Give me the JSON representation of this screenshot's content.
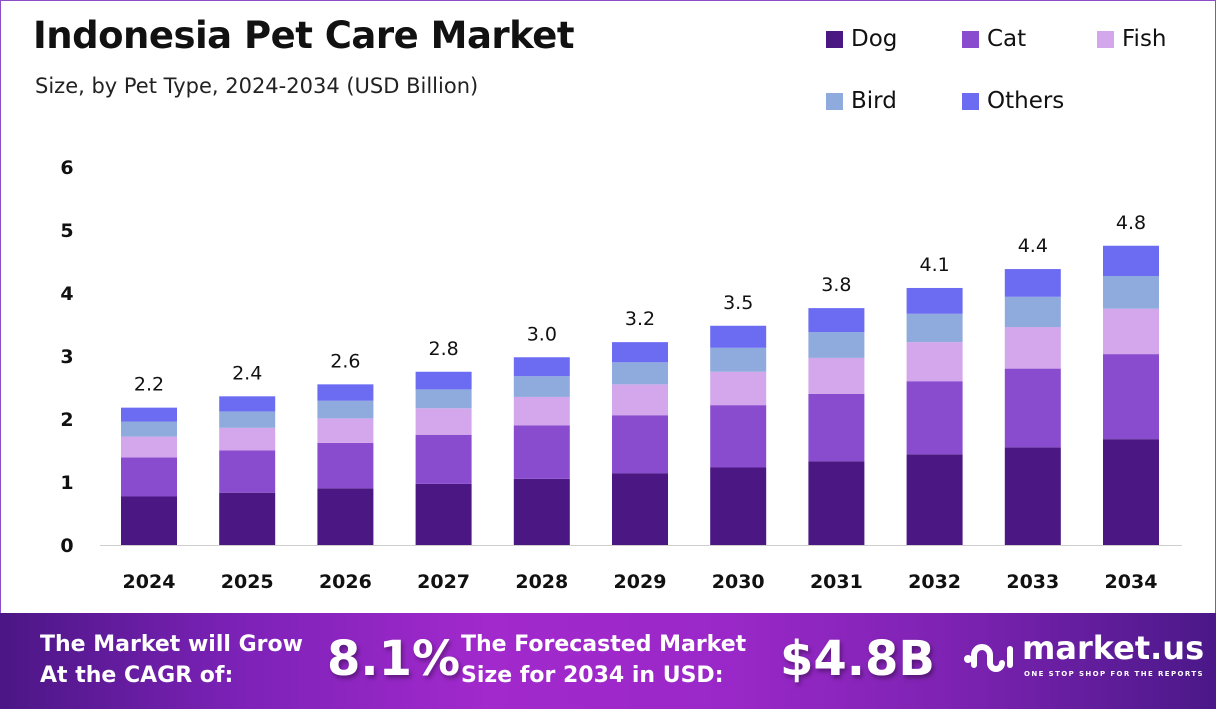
{
  "chart_data": {
    "type": "bar",
    "stacked": true,
    "title": "Indonesia Pet Care Market",
    "subtitle": "Size, by Pet Type, 2024-2034 (USD Billion)",
    "categories": [
      "2024",
      "2025",
      "2026",
      "2027",
      "2028",
      "2029",
      "2030",
      "2031",
      "2032",
      "2033",
      "2034"
    ],
    "series": [
      {
        "name": "Dog",
        "color": "#4b1782",
        "values": [
          0.77,
          0.83,
          0.9,
          0.97,
          1.05,
          1.14,
          1.23,
          1.33,
          1.44,
          1.55,
          1.68
        ]
      },
      {
        "name": "Cat",
        "color": "#8a4cce",
        "values": [
          0.62,
          0.67,
          0.72,
          0.78,
          0.85,
          0.92,
          0.99,
          1.07,
          1.16,
          1.25,
          1.35
        ]
      },
      {
        "name": "Fish",
        "color": "#d4a6ec",
        "values": [
          0.33,
          0.36,
          0.39,
          0.42,
          0.45,
          0.49,
          0.53,
          0.57,
          0.62,
          0.66,
          0.72
        ]
      },
      {
        "name": "Bird",
        "color": "#8faadc",
        "values": [
          0.24,
          0.26,
          0.28,
          0.3,
          0.33,
          0.35,
          0.38,
          0.41,
          0.45,
          0.48,
          0.52
        ]
      },
      {
        "name": "Others",
        "color": "#6b6cf2",
        "values": [
          0.22,
          0.24,
          0.26,
          0.28,
          0.3,
          0.32,
          0.35,
          0.38,
          0.41,
          0.44,
          0.48
        ]
      }
    ],
    "totals_labels": [
      "2.2",
      "2.4",
      "2.6",
      "2.8",
      "3.0",
      "3.2",
      "3.5",
      "3.8",
      "4.1",
      "4.4",
      "4.8"
    ],
    "ylim": [
      0,
      6
    ],
    "yticks": [
      "0",
      "1",
      "2",
      "3",
      "4",
      "5",
      "6"
    ],
    "xlabel": "",
    "ylabel": "",
    "grid": false,
    "legend_position": "top-right"
  },
  "footer": {
    "cagr_text_1": "The Market will Grow",
    "cagr_text_2": "At the CAGR of:",
    "cagr_value": "8.1%",
    "forecast_text_1": "The Forecasted Market",
    "forecast_text_2": "Size for 2034 in USD:",
    "forecast_value": "$4.8B",
    "logo_name": "market.us",
    "logo_tagline": "ONE STOP SHOP FOR THE REPORTS"
  }
}
